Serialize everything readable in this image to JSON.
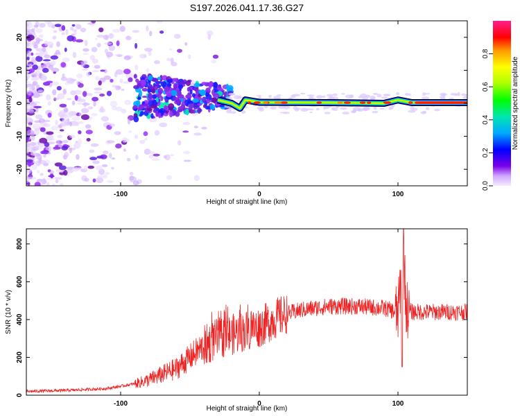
{
  "chart_data": [
    {
      "type": "heatmap",
      "title": "S197.2026.041.17.36.G27",
      "xlabel": "Height of straight line (km)",
      "ylabel": "Frequency (Hz)",
      "xlim": [
        -168,
        150
      ],
      "ylim": [
        -25,
        25
      ],
      "xticks": [
        -100,
        0,
        100
      ],
      "xtick_labels": [
        "-100",
        "0",
        "100"
      ],
      "yticks": [
        -20,
        -10,
        0,
        10,
        20
      ],
      "ytick_labels": [
        "-20",
        "-10",
        "0",
        "10",
        "20"
      ],
      "colorbar": {
        "label": "Normalized spectral amplitude",
        "range": [
          0,
          1
        ],
        "ticks": [
          0,
          0.2,
          0.4,
          0.6,
          0.8
        ],
        "tick_labels": [
          "0.0",
          "0.2",
          "0.4",
          "0.6",
          "0.8"
        ],
        "colors": [
          "#f2e6ff",
          "#c49bff",
          "#7700e6",
          "#0000ff",
          "#00bfff",
          "#00e6b0",
          "#00ff00",
          "#aaff00",
          "#ffff00",
          "#ff9900",
          "#ff0000",
          "#ff1f8f"
        ]
      },
      "trace": {
        "description": "dominant frequency ridge near 0 Hz",
        "points": [
          [
            -30,
            1
          ],
          [
            -20,
            0
          ],
          [
            -14,
            -1.5
          ],
          [
            -10,
            1
          ],
          [
            0,
            0.3
          ],
          [
            50,
            0.2
          ],
          [
            90,
            0
          ],
          [
            100,
            1
          ],
          [
            110,
            0.2
          ],
          [
            150,
            0.2
          ]
        ]
      }
    },
    {
      "type": "line",
      "xlabel": "Height of straight line (km)",
      "ylabel": "SNR (10 * v/v)",
      "xlim": [
        -168,
        150
      ],
      "ylim": [
        0,
        880
      ],
      "xticks": [
        -100,
        0,
        100
      ],
      "xtick_labels": [
        "-100",
        "0",
        "100"
      ],
      "yticks": [
        0,
        200,
        400,
        600,
        800
      ],
      "ytick_labels": [
        "0",
        "200",
        "400",
        "600",
        "800"
      ],
      "series": [
        {
          "name": "SNR",
          "color": "#ee2222",
          "x": [
            -168,
            -140,
            -110,
            -90,
            -80,
            -70,
            -60,
            -50,
            -40,
            -30,
            -20,
            -10,
            0,
            10,
            20,
            30,
            40,
            50,
            60,
            70,
            80,
            90,
            95,
            100,
            102,
            103,
            104,
            106,
            110,
            120,
            130,
            140,
            150
          ],
          "y": [
            20,
            25,
            35,
            60,
            80,
            110,
            140,
            200,
            260,
            300,
            320,
            340,
            360,
            400,
            430,
            450,
            460,
            470,
            470,
            470,
            465,
            460,
            450,
            430,
            600,
            200,
            740,
            460,
            440,
            440,
            440,
            440,
            440
          ]
        }
      ]
    }
  ]
}
